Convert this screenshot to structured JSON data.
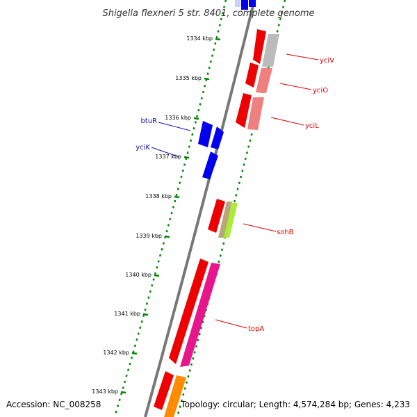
{
  "title": "Shigella flexneri 5 str. 8401, complete genome",
  "footer": {
    "accession": "Accession: NC_008258",
    "summary": "Topology: circular; Length: 4,574,284 bp; Genes: 4,233"
  },
  "ticks": [
    "1334 kbp",
    "1335 kbp",
    "1336 kbp",
    "1337 kbp",
    "1338 kbp",
    "1339 kbp",
    "1340 kbp",
    "1341 kbp",
    "1342 kbp",
    "1343 kbp"
  ],
  "colors": {
    "backbone": "#777777",
    "track_dots": "#008800",
    "forward_label": "#e00000",
    "reverse_label": "#1010c0"
  },
  "genes": [
    {
      "label": "yciV",
      "color": "#e00000"
    },
    {
      "label": "yciO",
      "color": "#e00000"
    },
    {
      "label": "yciL",
      "color": "#e00000"
    },
    {
      "label": "btuR",
      "color": "#1010c0"
    },
    {
      "label": "yciK",
      "color": "#1010c0"
    },
    {
      "label": "sohB",
      "color": "#e00000"
    },
    {
      "label": "topA",
      "color": "#e00000"
    }
  ]
}
